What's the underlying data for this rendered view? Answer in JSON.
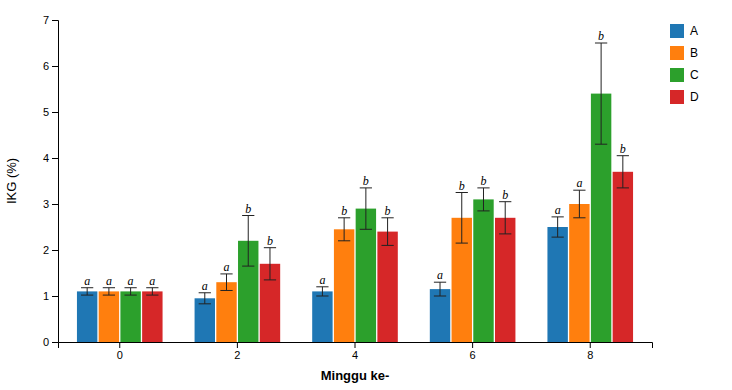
{
  "chart_data": {
    "type": "bar",
    "xlabel": "Minggu ke-",
    "ylabel": "IKG (%)",
    "categories": [
      "0",
      "2",
      "4",
      "6",
      "8"
    ],
    "series": [
      {
        "name": "A",
        "values": [
          1.1,
          0.95,
          1.1,
          1.15,
          2.5
        ],
        "errors": [
          0.08,
          0.12,
          0.1,
          0.15,
          0.22
        ],
        "annotations": [
          "a",
          "a",
          "a",
          "a",
          "a"
        ]
      },
      {
        "name": "B",
        "values": [
          1.1,
          1.3,
          2.45,
          2.7,
          3.0
        ],
        "errors": [
          0.08,
          0.18,
          0.25,
          0.55,
          0.3
        ],
        "annotations": [
          "a",
          "a",
          "b",
          "b",
          "a"
        ]
      },
      {
        "name": "C",
        "values": [
          1.1,
          2.2,
          2.9,
          3.1,
          5.4
        ],
        "errors": [
          0.08,
          0.55,
          0.45,
          0.25,
          1.1
        ],
        "annotations": [
          "a",
          "b",
          "b",
          "b",
          "b"
        ]
      },
      {
        "name": "D",
        "values": [
          1.1,
          1.7,
          2.4,
          2.7,
          3.7
        ],
        "errors": [
          0.08,
          0.35,
          0.3,
          0.35,
          0.35
        ],
        "annotations": [
          "a",
          "b",
          "b",
          "b",
          "b"
        ]
      }
    ],
    "ylim": [
      0,
      7
    ],
    "yticks": [
      0,
      1,
      2,
      3,
      4,
      5,
      6,
      7
    ],
    "grid": false,
    "legend": "right"
  }
}
